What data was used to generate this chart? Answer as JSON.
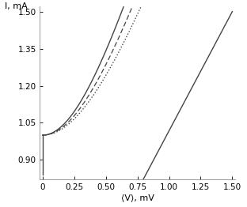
{
  "xlim": [
    -0.02,
    1.52
  ],
  "ylim": [
    0.82,
    1.52
  ],
  "xticks": [
    0,
    0.25,
    0.5,
    0.75,
    1.0,
    1.25,
    1.5
  ],
  "yticks": [
    0.9,
    1.05,
    1.2,
    1.35,
    1.5
  ],
  "xlabel": "⟨V⟩, mV",
  "ylabel": "I, mA",
  "background_color": "#ffffff",
  "line_color": "#444444",
  "figsize": [
    3.12,
    2.62
  ],
  "dpi": 100,
  "Ic1": 1.0,
  "Rn1": 0.56,
  "Ic2": 1.0,
  "Rn2": 0.62,
  "Ic3": 1.0,
  "Rn3": 0.68,
  "vert_I_low": 0.84,
  "line_x0": 0.795,
  "line_y0": 0.82,
  "line_x1": 1.5,
  "line_y1": 1.5
}
